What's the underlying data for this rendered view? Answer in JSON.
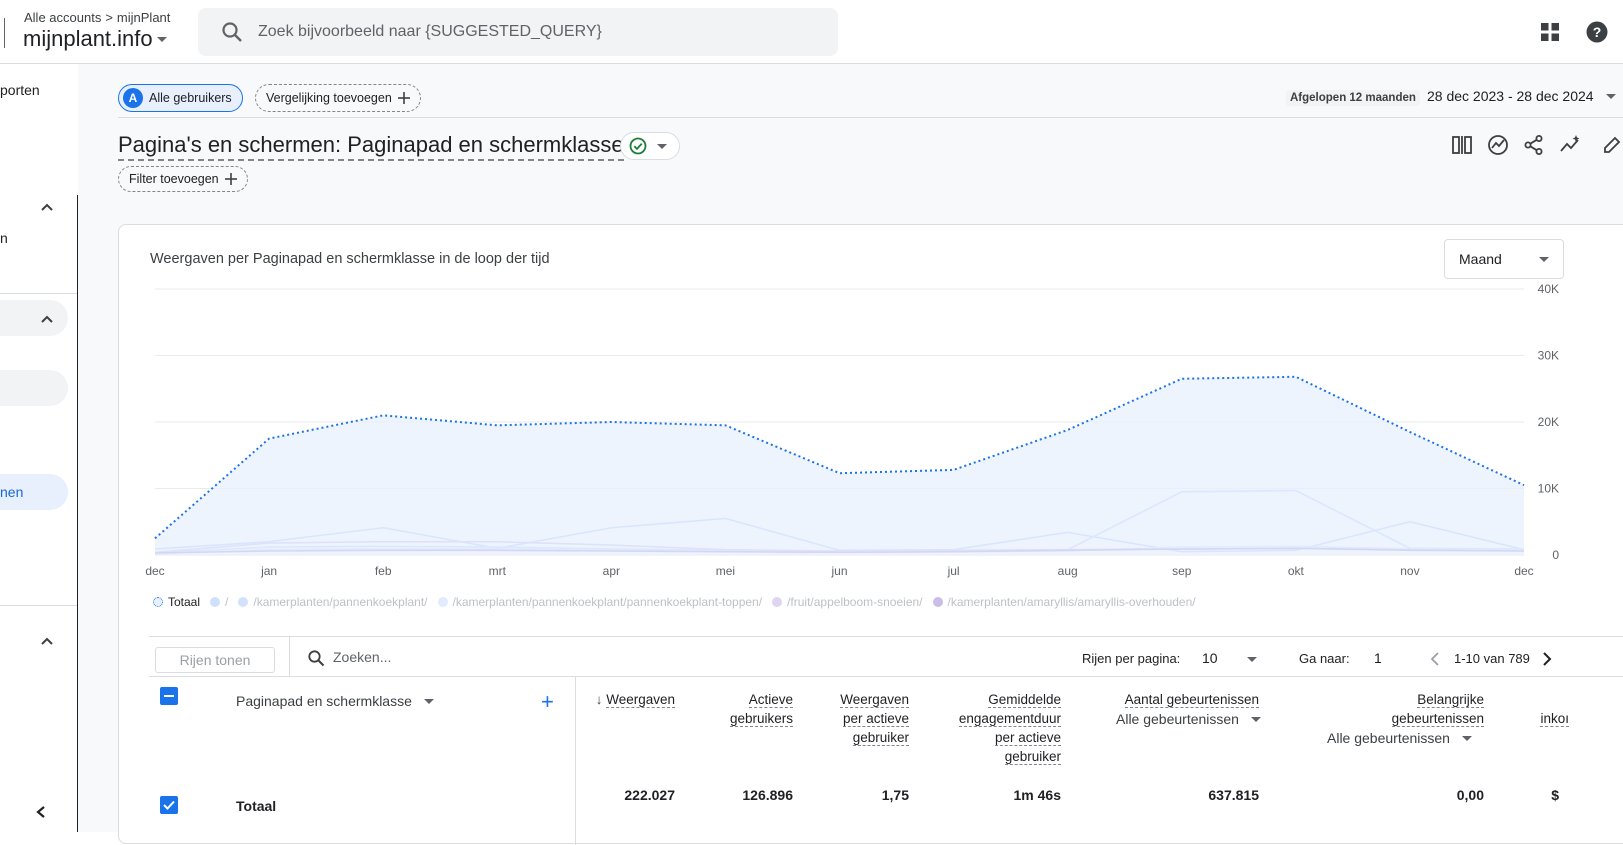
{
  "header": {
    "breadcrumb_all": "Alle accounts",
    "breadcrumb_sep": ">",
    "breadcrumb_account": "mijnPlant",
    "property": "mijnplant.info",
    "search_placeholder": "Zoek bijvoorbeeld naar {SUGGESTED_QUERY}"
  },
  "sidebar": {
    "rapporten": "porten",
    "item_n": "n",
    "active_item": "nen"
  },
  "segments": {
    "avatar_letter": "A",
    "all_users": "Alle gebruikers",
    "add_comparison": "Vergelijking toevoegen",
    "add_filter": "Filter toevoegen"
  },
  "dates": {
    "label": "Afgelopen 12 maanden",
    "range": "28 dec 2023 - 28 dec 2024"
  },
  "page": {
    "title": "Pagina's en schermen: Paginapad en schermklasse"
  },
  "card": {
    "chart_title": "Weergaven per Paginapad en schermklasse in de loop der tijd",
    "period": "Maand"
  },
  "chart_data": {
    "type": "line",
    "categories": [
      "dec",
      "jan",
      "feb",
      "mrt",
      "apr",
      "mei",
      "jun",
      "jul",
      "aug",
      "sep",
      "okt",
      "nov",
      "dec"
    ],
    "ylim": [
      0,
      40000
    ],
    "yticks": [
      "40K",
      "30K",
      "20K",
      "10K",
      "0"
    ],
    "grid": true,
    "legend_position": "bottom",
    "series": [
      {
        "name": "Totaal",
        "color": "#1a73e8",
        "style": "dotted-area",
        "values": [
          2500,
          17500,
          21000,
          19500,
          20000,
          19500,
          12300,
          12800,
          18800,
          26500,
          26800,
          18500,
          10500
        ]
      },
      {
        "name": "/",
        "color": "#a8c7fa",
        "values": [
          900,
          2000,
          4100,
          1000,
          4100,
          5500,
          700,
          800,
          3400,
          500,
          700,
          5000,
          800
        ]
      },
      {
        "name": "/kamerplanten/pannenkoekplant/",
        "color": "#aecbfa",
        "values": [
          300,
          1200,
          1300,
          1200,
          900,
          700,
          500,
          600,
          800,
          9500,
          9700,
          1000,
          900
        ]
      },
      {
        "name": "/kamerplanten/pannenkoekplant/pannenkoekplant-toppen/",
        "color": "#c6dafc",
        "values": [
          200,
          800,
          900,
          900,
          700,
          600,
          400,
          500,
          600,
          1200,
          1300,
          900,
          700
        ]
      },
      {
        "name": "/fruit/appelboom-snoeien/",
        "color": "#c5b3e6",
        "values": [
          400,
          1800,
          2000,
          2000,
          1500,
          800,
          600,
          700,
          800,
          900,
          1000,
          800,
          600
        ]
      },
      {
        "name": "/kamerplanten/amaryllis/amaryllis-overhouden/",
        "color": "#9e86d6",
        "values": [
          300,
          600,
          700,
          700,
          600,
          500,
          400,
          500,
          700,
          900,
          1000,
          700,
          600
        ]
      }
    ]
  },
  "table": {
    "show_rows": "Rijen tonen",
    "search_placeholder": "Zoeken...",
    "rows_per_page_label": "Rijen per pagina:",
    "rows_per_page": "10",
    "goto_label": "Ga naar:",
    "goto_value": "1",
    "range": "1-10 van 789",
    "dimension": "Paginapad en schermklasse",
    "add_dimension": "+",
    "columns": {
      "views": "Weergaven",
      "active1": "Actieve",
      "active2": "gebruikers",
      "vpa1": "Weergaven",
      "vpa2": "per actieve",
      "vpa3": "gebruiker",
      "eng1": "Gemiddelde",
      "eng2": "engagementduur",
      "eng3": "per actieve",
      "eng4": "gebruiker",
      "events": "Aantal gebeurtenissen",
      "events_sub": "Alle gebeurtenissen",
      "key1": "Belangrijke",
      "key2": "gebeurtenissen",
      "key_sub": "Alle gebeurtenissen",
      "rev_partial": "inkoı"
    },
    "total": {
      "label": "Totaal",
      "views": "222.027",
      "active": "126.896",
      "vpa": "1,75",
      "eng": "1m 46s",
      "events": "637.815",
      "key": "0,00",
      "rev": "$"
    }
  }
}
